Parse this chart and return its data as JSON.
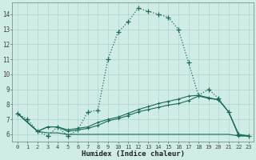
{
  "xlabel": "Humidex (Indice chaleur)",
  "bg_color": "#d0ece6",
  "grid_color": "#b0d4cc",
  "line_color": "#1a6b5a",
  "xlim": [
    -0.5,
    23.5
  ],
  "ylim": [
    5.5,
    14.8
  ],
  "xticks": [
    0,
    1,
    2,
    3,
    4,
    5,
    6,
    7,
    8,
    9,
    10,
    11,
    12,
    13,
    14,
    15,
    16,
    17,
    18,
    19,
    20,
    21,
    22,
    23
  ],
  "yticks": [
    6,
    7,
    8,
    9,
    10,
    11,
    12,
    13,
    14
  ],
  "curve_dotted": {
    "x": [
      0,
      1,
      2,
      3,
      4,
      5,
      6,
      7,
      8,
      9,
      10,
      11,
      12,
      13,
      14,
      15,
      16,
      17,
      18,
      19,
      20,
      21,
      22,
      23
    ],
    "y": [
      7.4,
      7.0,
      6.2,
      5.9,
      6.5,
      5.9,
      6.3,
      7.5,
      7.6,
      11.0,
      12.8,
      13.5,
      14.4,
      14.2,
      14.0,
      13.8,
      13.0,
      10.8,
      8.6,
      9.0,
      8.4,
      7.5,
      6.0,
      5.9
    ]
  },
  "curve_solid1": {
    "x": [
      0,
      2,
      3,
      4,
      5,
      6,
      7,
      8,
      9,
      10,
      11,
      12,
      13,
      14,
      15,
      16,
      17,
      18,
      19,
      20,
      21,
      22,
      23
    ],
    "y": [
      7.4,
      6.2,
      6.5,
      6.5,
      6.3,
      6.4,
      6.5,
      6.8,
      7.0,
      7.15,
      7.4,
      7.65,
      7.85,
      8.05,
      8.2,
      8.35,
      8.55,
      8.6,
      8.45,
      8.3,
      7.5,
      6.0,
      5.9
    ]
  },
  "curve_solid2": {
    "x": [
      0,
      2,
      3,
      4,
      5,
      6,
      7,
      8,
      9,
      10,
      11,
      12,
      13,
      14,
      15,
      16,
      17,
      18,
      19,
      20,
      21,
      22,
      23
    ],
    "y": [
      7.4,
      6.2,
      6.5,
      6.5,
      6.2,
      6.3,
      6.4,
      6.6,
      6.9,
      7.05,
      7.25,
      7.5,
      7.65,
      7.8,
      7.95,
      8.05,
      8.25,
      8.55,
      8.4,
      8.3,
      7.5,
      5.9,
      5.9
    ]
  },
  "curve_flat": {
    "x": [
      0,
      2,
      3,
      4,
      5,
      6,
      7,
      8,
      9,
      10,
      11,
      12,
      13,
      14,
      15,
      16,
      17,
      18,
      19,
      20,
      21,
      22,
      23
    ],
    "y": [
      7.4,
      6.2,
      6.1,
      6.1,
      6.0,
      6.0,
      6.0,
      6.0,
      6.0,
      6.0,
      6.0,
      6.0,
      6.0,
      6.0,
      6.0,
      6.0,
      6.0,
      6.0,
      6.0,
      6.0,
      6.0,
      5.9,
      5.9
    ]
  }
}
